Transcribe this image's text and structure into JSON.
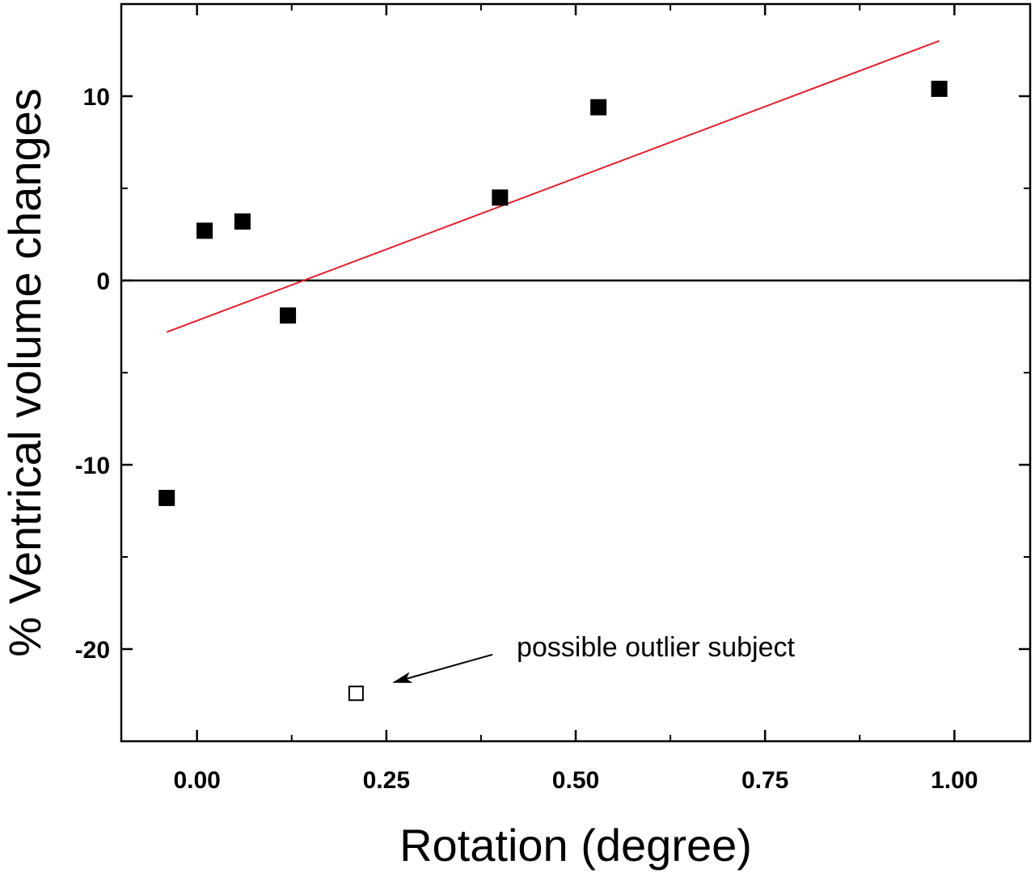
{
  "chart_data": {
    "type": "scatter",
    "xlabel": "Rotation (degree)",
    "ylabel": "% Ventrical volume changes",
    "xlim": [
      -0.1,
      1.1
    ],
    "ylim": [
      -25,
      15
    ],
    "x_ticks": [
      0.0,
      0.25,
      0.5,
      0.75,
      1.0
    ],
    "x_tick_labels": [
      "0.00",
      "0.25",
      "0.50",
      "0.75",
      "1.00"
    ],
    "y_ticks": [
      -20,
      -10,
      0,
      10
    ],
    "y_tick_labels": [
      "-20",
      "-10",
      "0",
      "10"
    ],
    "grid": false,
    "legend": "none",
    "zero_line": true,
    "series": [
      {
        "marker": "filled-square",
        "color": "#000000",
        "points": [
          {
            "x": -0.04,
            "y": -11.8
          },
          {
            "x": 0.01,
            "y": 2.7
          },
          {
            "x": 0.06,
            "y": 3.2
          },
          {
            "x": 0.12,
            "y": -1.9
          },
          {
            "x": 0.4,
            "y": 4.5
          },
          {
            "x": 0.53,
            "y": 9.4
          },
          {
            "x": 0.98,
            "y": 10.4
          }
        ]
      },
      {
        "marker": "open-square",
        "color": "#000000",
        "points": [
          {
            "x": 0.21,
            "y": -22.4
          }
        ]
      }
    ],
    "fit_line": {
      "color": "#e0212e",
      "points": [
        {
          "x": -0.04,
          "y": -2.8
        },
        {
          "x": 0.98,
          "y": 13.0
        }
      ]
    },
    "annotations": [
      {
        "text": "possible outlier subject",
        "arrow_from": {
          "x": 0.39,
          "y": -20.3
        },
        "arrow_to": {
          "x": 0.26,
          "y": -21.8
        }
      }
    ]
  }
}
